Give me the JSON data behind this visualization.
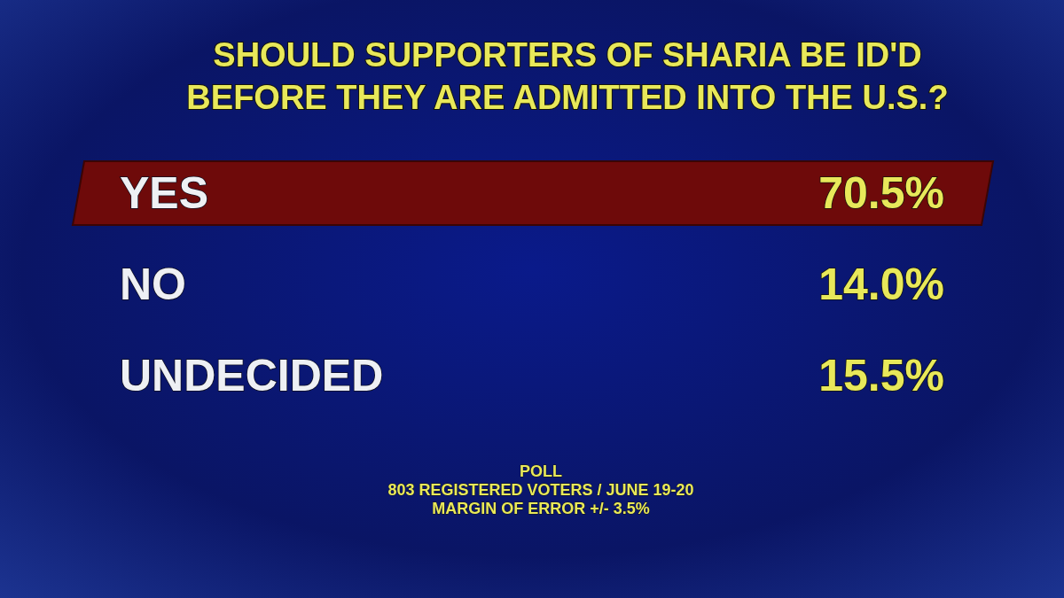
{
  "chart_data": {
    "type": "other",
    "title": "SHOULD SUPPORTERS OF SHARIA BE ID'D BEFORE THEY ARE ADMITTED INTO THE U.S.?",
    "categories": [
      "YES",
      "NO",
      "UNDECIDED"
    ],
    "values": [
      70.5,
      14.0,
      15.5
    ],
    "value_labels": [
      "70.5%",
      "14.0%",
      "15.5%"
    ],
    "colors": [
      "#6e0a0a",
      null,
      null
    ],
    "annotations": [
      "POLL",
      "803 REGISTERED VOTERS / JUNE 19-20",
      "MARGIN OF ERROR +/- 3.5%"
    ]
  }
}
